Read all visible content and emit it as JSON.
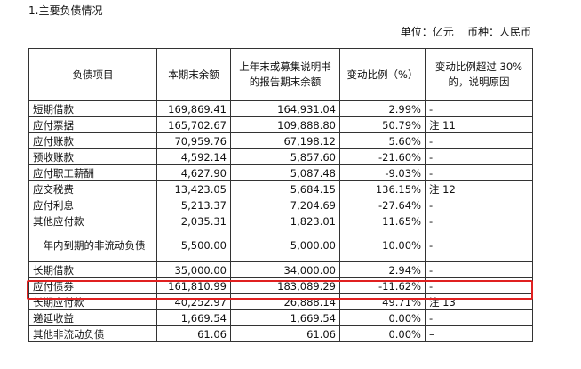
{
  "section_title": "1.主要负债情况",
  "unit_line": "单位：亿元    币种：人民币",
  "table": {
    "headers": [
      "负债项目",
      "本期末余额",
      "上年末或募集说明书的报告期末余额",
      "变动比例（%）",
      "变动比例超过 30%的，说明原因"
    ],
    "rows": [
      {
        "item": "短期借款",
        "current": "169,869.41",
        "previous": "164,931.04",
        "change": "2.99%",
        "note": "-"
      },
      {
        "item": "应付票据",
        "current": "165,702.67",
        "previous": "109,888.80",
        "change": "50.79%",
        "note": "注 11"
      },
      {
        "item": "应付账款",
        "current": "70,959.76",
        "previous": "67,198.12",
        "change": "5.60%",
        "note": "-"
      },
      {
        "item": "预收账款",
        "current": "4,592.14",
        "previous": "5,857.60",
        "change": "-21.60%",
        "note": "-"
      },
      {
        "item": "应付职工薪酬",
        "current": "4,627.90",
        "previous": "5,087.48",
        "change": "-9.03%",
        "note": "-"
      },
      {
        "item": "应交税费",
        "current": "13,423.05",
        "previous": "5,684.15",
        "change": "136.15%",
        "note": "注 12"
      },
      {
        "item": "应付利息",
        "current": "5,213.37",
        "previous": "7,204.69",
        "change": "-27.64%",
        "note": "-"
      },
      {
        "item": "其他应付款",
        "current": "2,035.31",
        "previous": "1,823.01",
        "change": "11.65%",
        "note": "-"
      },
      {
        "item": "一年内到期的非流动负债",
        "current": "5,500.00",
        "previous": "5,000.00",
        "change": "10.00%",
        "note": "-"
      },
      {
        "item": "长期借款",
        "current": "35,000.00",
        "previous": "34,000.00",
        "change": "2.94%",
        "note": "-"
      },
      {
        "item": "应付债券",
        "current": "161,810.99",
        "previous": "183,089.29",
        "change": "-11.62%",
        "note": "-"
      },
      {
        "item": "长期应付款",
        "current": "40,252.97",
        "previous": "26,888.14",
        "change": "49.71%",
        "note": "注 13"
      },
      {
        "item": "递延收益",
        "current": "1,669.54",
        "previous": "1,669.54",
        "change": "0.00%",
        "note": "-"
      },
      {
        "item": "其他非流动负债",
        "current": "61.06",
        "previous": "61.06",
        "change": "0.00%",
        "note": "–"
      }
    ]
  },
  "highlight": {
    "row_item": "应付债券",
    "color": "#e02020"
  }
}
